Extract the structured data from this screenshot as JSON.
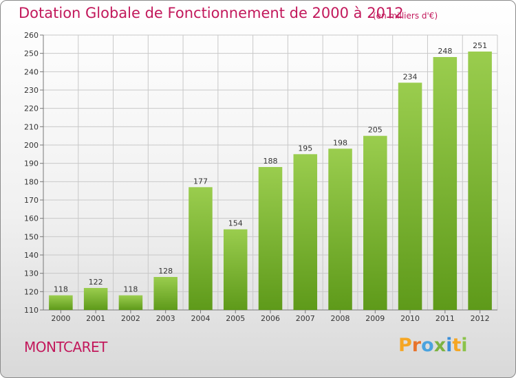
{
  "header": {
    "title": "Dotation Globale de Fonctionnement de 2000 à 2012",
    "unit": "(en milliers d'€)"
  },
  "commune": "MONTCARET",
  "logo": {
    "letters": [
      "P",
      "r",
      "o",
      "x",
      "i",
      "t",
      "i"
    ]
  },
  "colors": {
    "bar_top": "#9acd4e",
    "bar_bottom": "#5e9a1a",
    "title": "#c2185b",
    "grid": "#c8c8c8"
  },
  "chart_data": {
    "type": "bar",
    "title": "Dotation Globale de Fonctionnement de 2000 à 2012",
    "subtitle": "(en milliers d'€)",
    "xlabel": "",
    "ylabel": "",
    "categories": [
      "2000",
      "2001",
      "2002",
      "2003",
      "2004",
      "2005",
      "2006",
      "2007",
      "2008",
      "2009",
      "2010",
      "2011",
      "2012"
    ],
    "values": [
      118,
      122,
      118,
      128,
      177,
      154,
      188,
      195,
      198,
      205,
      234,
      248,
      251
    ],
    "ylim": [
      110,
      260
    ],
    "yticks": [
      110,
      120,
      130,
      140,
      150,
      160,
      170,
      180,
      190,
      200,
      210,
      220,
      230,
      240,
      250,
      260
    ],
    "grid": true
  }
}
